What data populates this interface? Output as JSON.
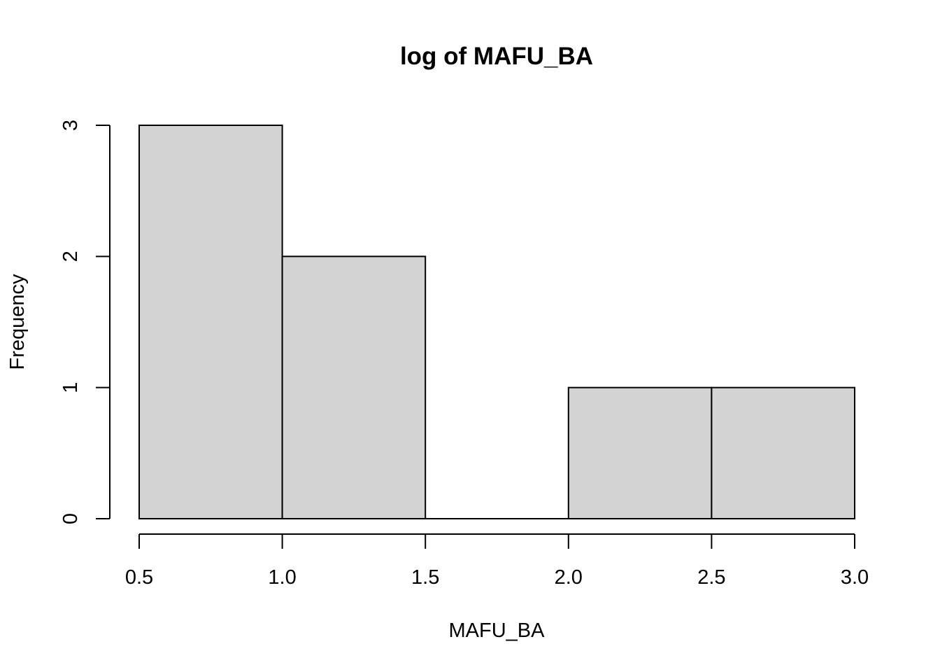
{
  "chart_data": {
    "type": "bar",
    "subtype": "histogram",
    "title": "log of MAFU_BA",
    "xlabel": "MAFU_BA",
    "ylabel": "Frequency",
    "bins": [
      {
        "from": 0.5,
        "to": 1.0,
        "count": 3
      },
      {
        "from": 1.0,
        "to": 1.5,
        "count": 2
      },
      {
        "from": 1.5,
        "to": 2.0,
        "count": 0
      },
      {
        "from": 2.0,
        "to": 2.5,
        "count": 1
      },
      {
        "from": 2.5,
        "to": 3.0,
        "count": 1
      }
    ],
    "xlim": [
      0.5,
      3.0
    ],
    "ylim": [
      0,
      3
    ],
    "x_ticks": [
      "0.5",
      "1.0",
      "1.5",
      "2.0",
      "2.5",
      "3.0"
    ],
    "y_ticks": [
      "0",
      "1",
      "2",
      "3"
    ],
    "bar_color": "#d3d3d3",
    "grid": false,
    "legend": "none"
  }
}
